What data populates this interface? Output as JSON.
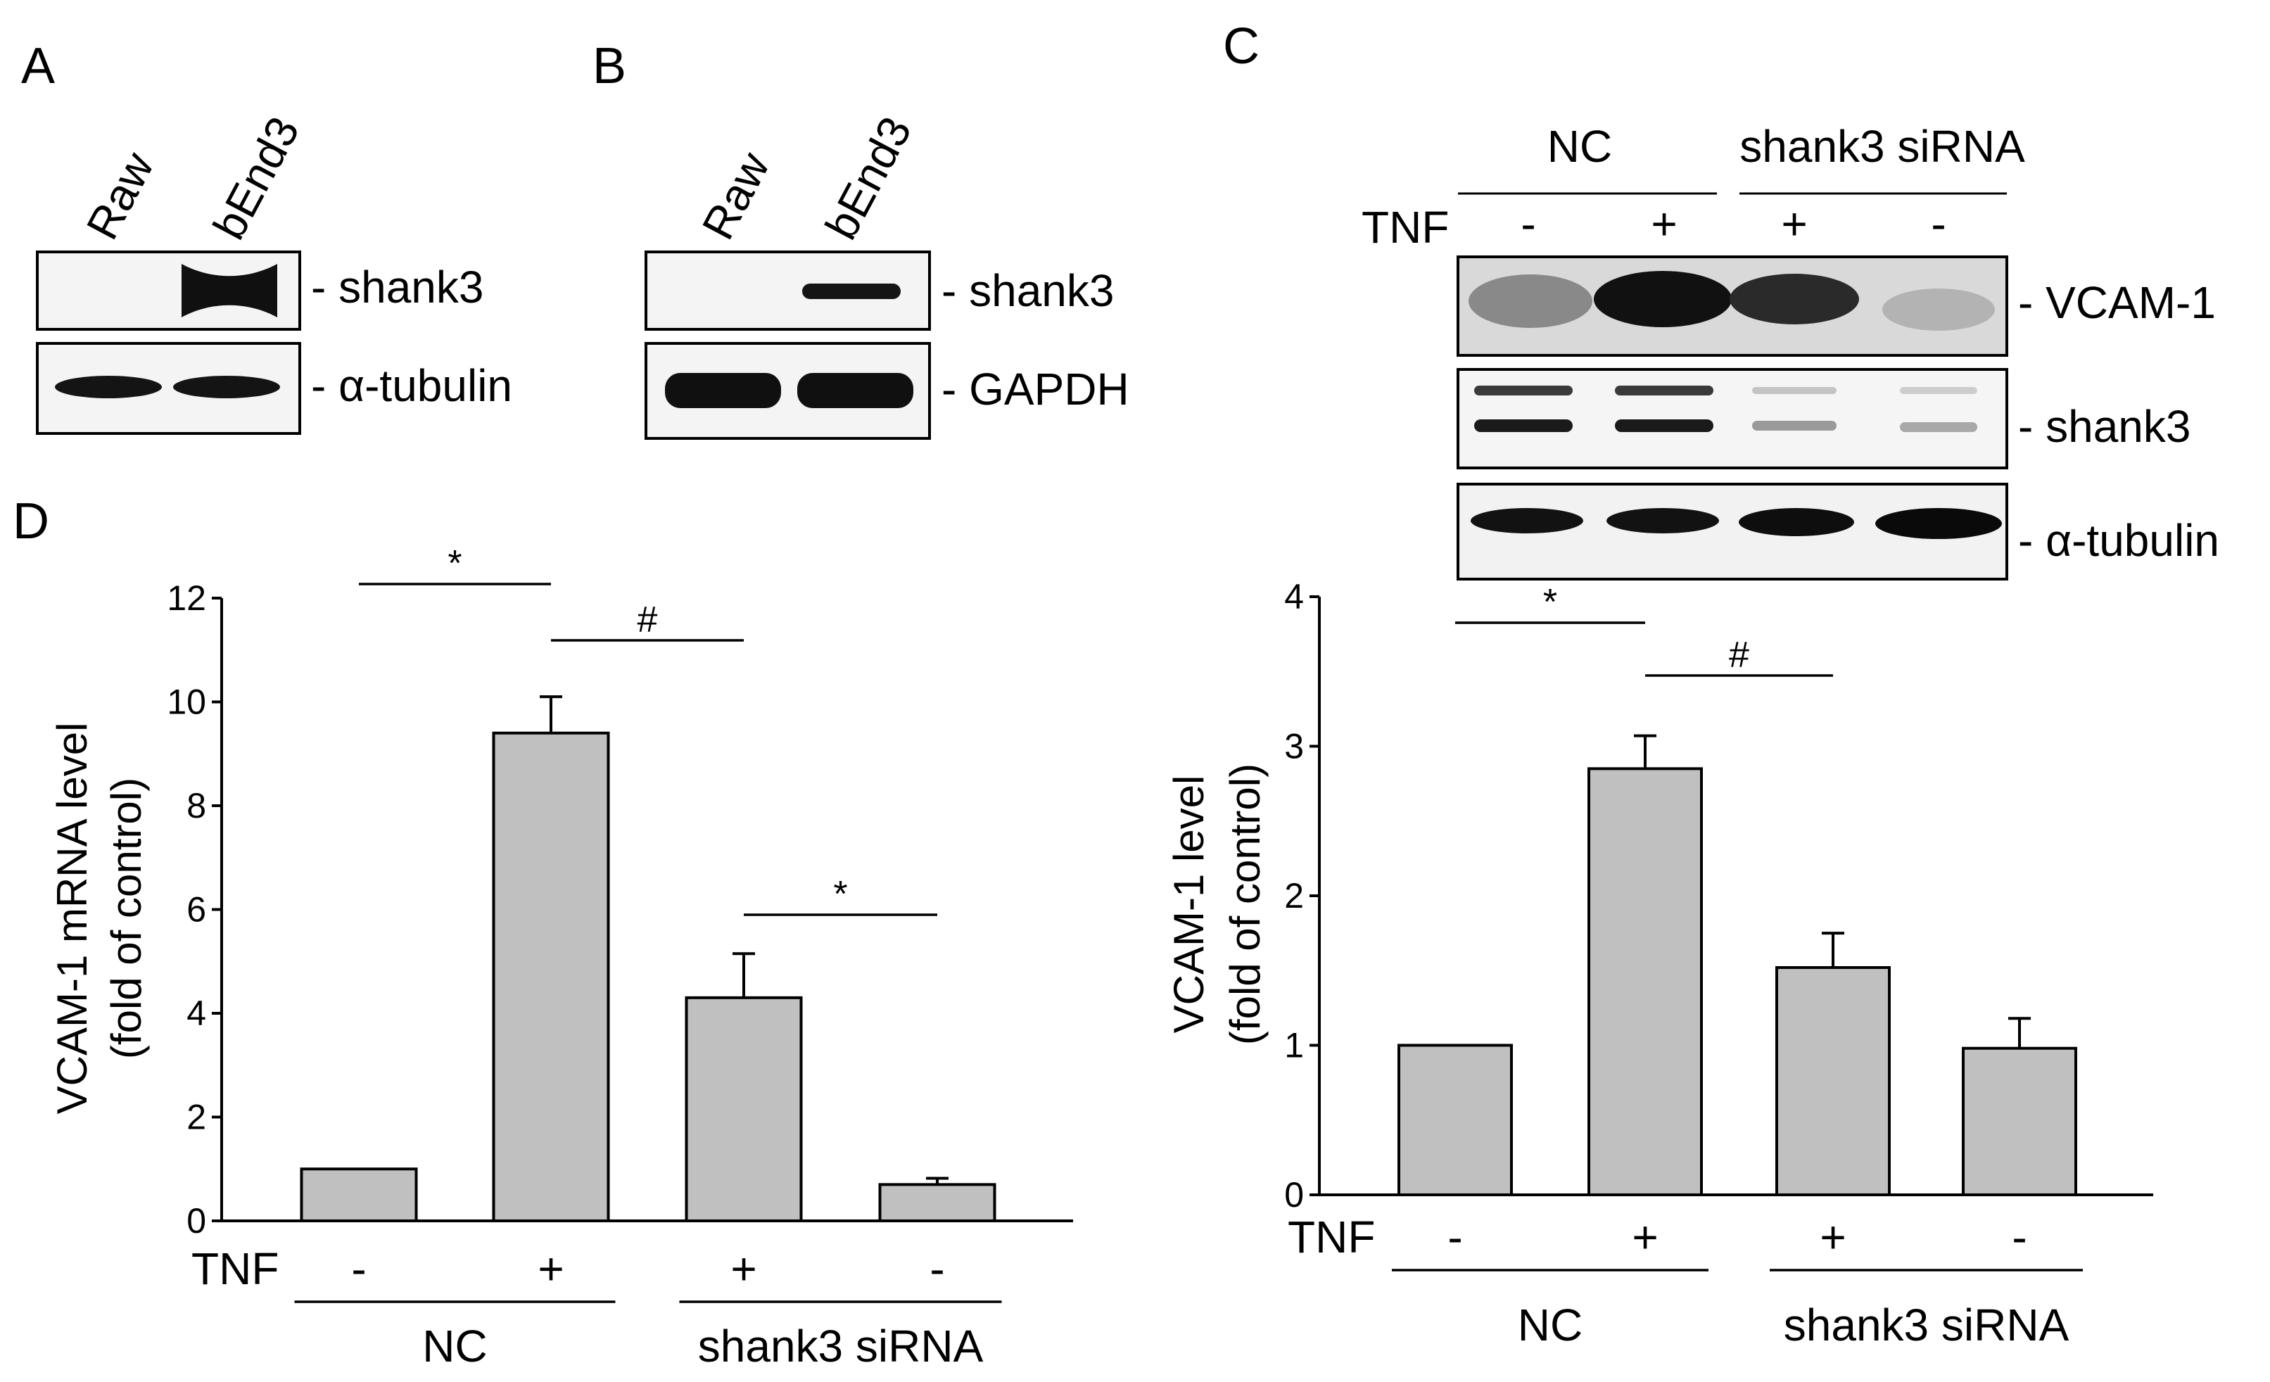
{
  "panels": {
    "A": {
      "letter": "A",
      "lanes": [
        "Raw",
        "bEnd3"
      ],
      "blots": [
        {
          "label": "- shank3",
          "band_intensity": [
            0.0,
            1.0
          ]
        },
        {
          "label": "- α-tubulin",
          "band_intensity": [
            1.0,
            1.0
          ]
        }
      ]
    },
    "B": {
      "letter": "B",
      "lanes": [
        "Raw",
        "bEnd3"
      ],
      "blots": [
        {
          "label": "- shank3",
          "band_intensity": [
            0.0,
            0.8
          ]
        },
        {
          "label": "- GAPDH",
          "band_intensity": [
            1.0,
            1.0
          ]
        }
      ]
    },
    "C": {
      "letter": "C",
      "groups": [
        "NC",
        "shank3 siRNA"
      ],
      "tnf_label": "TNF",
      "tnf": [
        "-",
        "+",
        "+",
        "-"
      ],
      "blots": [
        {
          "label": "- VCAM-1",
          "band_intensity": [
            0.4,
            1.0,
            0.85,
            0.2
          ]
        },
        {
          "label": "- shank3",
          "band_intensity": [
            0.8,
            0.8,
            0.25,
            0.25
          ]
        },
        {
          "label": "- α-tubulin",
          "band_intensity": [
            1.0,
            1.0,
            1.0,
            1.0
          ]
        }
      ]
    },
    "D": {
      "letter": "D"
    }
  },
  "chart_data": [
    {
      "type": "bar",
      "panel": "D",
      "categories": [
        "NC, TNF -",
        "NC, TNF +",
        "shank3 siRNA, TNF +",
        "shank3 siRNA, TNF -"
      ],
      "tnf_label": "TNF",
      "tnf": [
        "-",
        "+",
        "+",
        "-"
      ],
      "groups": [
        "NC",
        "shank3 siRNA"
      ],
      "values": [
        1.0,
        9.4,
        4.3,
        0.7
      ],
      "errors": [
        0,
        0.7,
        0.85,
        0.12
      ],
      "ylabel": "VCAM-1 mRNA level",
      "ylabel2": "(fold of control)",
      "ylim": [
        0,
        12
      ],
      "yticks": [
        "0",
        "2",
        "4",
        "6",
        "8",
        "10",
        "12"
      ],
      "bar_color": "#c0c0c0",
      "significance": [
        {
          "between": [
            0,
            1
          ],
          "mark": "*"
        },
        {
          "between": [
            1,
            2
          ],
          "mark": "#"
        },
        {
          "between": [
            2,
            3
          ],
          "mark": "*"
        }
      ]
    },
    {
      "type": "bar",
      "panel": "C",
      "categories": [
        "NC, TNF -",
        "NC, TNF +",
        "shank3 siRNA, TNF +",
        "shank3 siRNA, TNF -"
      ],
      "tnf_label": "TNF",
      "tnf": [
        "-",
        "+",
        "+",
        "-"
      ],
      "groups": [
        "NC",
        "shank3 siRNA"
      ],
      "values": [
        1.0,
        2.85,
        1.52,
        0.98
      ],
      "errors": [
        0,
        0.22,
        0.23,
        0.2
      ],
      "ylabel": "VCAM-1 level",
      "ylabel2": "(fold of control)",
      "ylim": [
        0,
        4
      ],
      "yticks": [
        "0",
        "1",
        "2",
        "3",
        "4"
      ],
      "bar_color": "#c0c0c0",
      "significance": [
        {
          "between": [
            0,
            1
          ],
          "mark": "*"
        },
        {
          "between": [
            1,
            2
          ],
          "mark": "#"
        }
      ]
    }
  ]
}
